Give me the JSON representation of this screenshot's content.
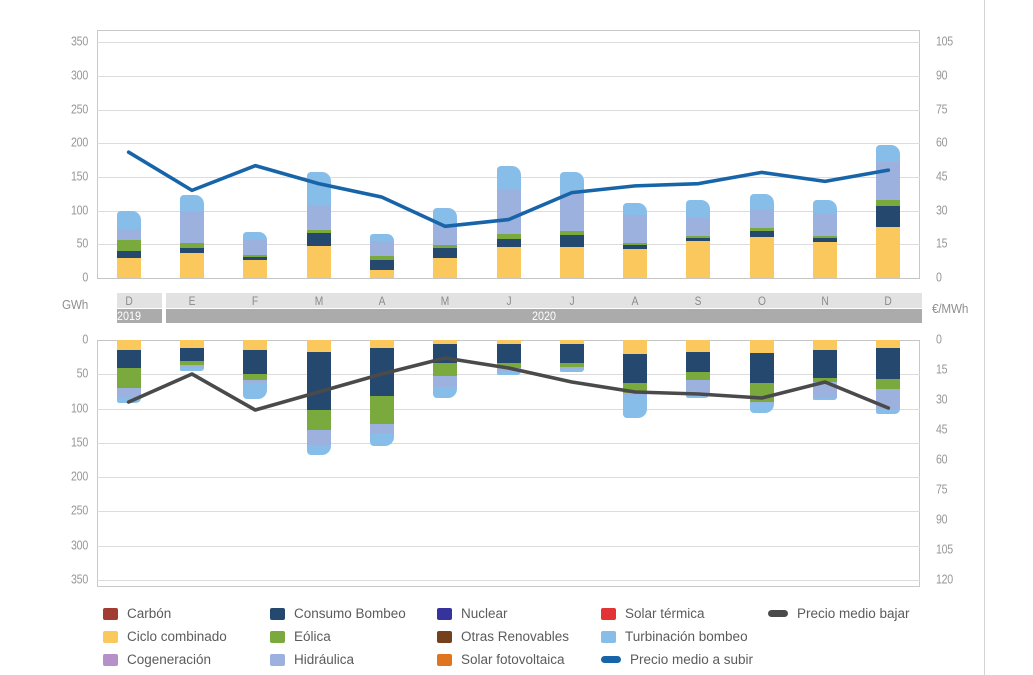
{
  "units": {
    "left": "GWh",
    "right": "€/MWh"
  },
  "months": [
    "D",
    "E",
    "F",
    "M",
    "A",
    "M",
    "J",
    "J",
    "A",
    "S",
    "O",
    "N",
    "D"
  ],
  "year_groups": [
    {
      "label": "2019",
      "months": 1
    },
    {
      "label": "2020",
      "months": 12
    }
  ],
  "colors": {
    "carbon": "#A23B31",
    "ciclo_combinado": "#FAC85C",
    "cogeneracion": "#B691C9",
    "consumo_bombeo": "#25486F",
    "eolica": "#7AA93E",
    "hidraulica": "#9DB1DE",
    "nuclear": "#37339C",
    "otras_renovables": "#74411C",
    "solar_fotovoltaica": "#E0751F",
    "solar_termica": "#E23337",
    "turbinacion_bombeo": "#87BEE9",
    "precio_subir": "#1765A8",
    "precio_bajar": "#4A4A4A",
    "gridline": "#dcdcdc",
    "band_light": "#e2e2e2",
    "band_dark": "#ababab"
  },
  "chart_data": [
    {
      "panel": "up",
      "type": "bar",
      "direction": "up",
      "categories": [
        "D",
        "E",
        "F",
        "M",
        "A",
        "M",
        "J",
        "J",
        "A",
        "S",
        "O",
        "N",
        "D"
      ],
      "axis_left": {
        "label": "GWh",
        "min": 0,
        "max": 350,
        "step": 50
      },
      "axis_right": {
        "label": "€/MWh",
        "min": 0,
        "max": 105,
        "step": 15
      },
      "grid": true,
      "series": [
        {
          "name": "Ciclo combinado",
          "key": "ciclo_combinado",
          "values": [
            30,
            37,
            27,
            47,
            12,
            29,
            46,
            46,
            43,
            55,
            61,
            54,
            75
          ]
        },
        {
          "name": "Consumo Bombeo",
          "key": "consumo_bombeo",
          "values": [
            10,
            8,
            4,
            20,
            15,
            15,
            12,
            18,
            6,
            4,
            8,
            6,
            32
          ]
        },
        {
          "name": "Eólica",
          "key": "eolica",
          "values": [
            17,
            7,
            3,
            4,
            6,
            5,
            7,
            6,
            3,
            4,
            5,
            2,
            9
          ]
        },
        {
          "name": "Hidráulica",
          "key": "hidraulica",
          "values": [
            16,
            46,
            23,
            37,
            22,
            33,
            67,
            55,
            42,
            27,
            28,
            33,
            56
          ]
        },
        {
          "name": "Turbinación bombeo",
          "key": "turbinacion_bombeo",
          "values": [
            27,
            25,
            11,
            50,
            10,
            22,
            34,
            32,
            18,
            26,
            23,
            20,
            25
          ]
        }
      ],
      "line": {
        "name": "Precio medio a subir",
        "key": "precio_subir",
        "axis": "right",
        "values": [
          56,
          39,
          50,
          42,
          36,
          23,
          26,
          38,
          41,
          42,
          47,
          43,
          48
        ]
      }
    },
    {
      "panel": "down",
      "type": "bar",
      "direction": "down",
      "categories": [
        "D",
        "E",
        "F",
        "M",
        "A",
        "M",
        "J",
        "J",
        "A",
        "S",
        "O",
        "N",
        "D"
      ],
      "axis_left": {
        "label": "GWh",
        "min": 0,
        "max": 350,
        "step": 50
      },
      "axis_right": {
        "label": "€/MWh",
        "min": 0,
        "max": 120,
        "step": 15
      },
      "grid": true,
      "series": [
        {
          "name": "Ciclo combinado",
          "key": "ciclo_combinado",
          "values": [
            15,
            12,
            15,
            18,
            12,
            6,
            6,
            6,
            20,
            18,
            19,
            14,
            12
          ]
        },
        {
          "name": "Consumo Bombeo",
          "key": "consumo_bombeo",
          "values": [
            26,
            19,
            35,
            84,
            70,
            28,
            28,
            28,
            43,
            29,
            44,
            42,
            45
          ]
        },
        {
          "name": "Eólica",
          "key": "eolica",
          "values": [
            29,
            6,
            8,
            29,
            41,
            19,
            7,
            6,
            15,
            12,
            27,
            5,
            15
          ]
        },
        {
          "name": "Hidráulica",
          "key": "hidraulica",
          "values": [
            15,
            4,
            5,
            22,
            12,
            16,
            4,
            2,
            2,
            18,
            2,
            22,
            28
          ]
        },
        {
          "name": "Turbinación bombeo",
          "key": "turbinacion_bombeo",
          "values": [
            7,
            4,
            23,
            14,
            19,
            16,
            6,
            4,
            34,
            8,
            15,
            4,
            8
          ]
        }
      ],
      "line": {
        "name": "Precio medio bajar",
        "key": "precio_bajar",
        "axis": "right",
        "values": [
          31,
          17,
          35,
          26,
          17,
          9,
          14,
          21,
          26,
          27,
          29,
          21,
          34
        ]
      }
    }
  ],
  "legend": {
    "columns": [
      [
        {
          "label": "Carbón",
          "color_key": "carbon",
          "marker": "square"
        },
        {
          "label": "Ciclo combinado",
          "color_key": "ciclo_combinado",
          "marker": "square"
        },
        {
          "label": "Cogeneración",
          "color_key": "cogeneracion",
          "marker": "square"
        }
      ],
      [
        {
          "label": "Consumo Bombeo",
          "color_key": "consumo_bombeo",
          "marker": "square"
        },
        {
          "label": "Eólica",
          "color_key": "eolica",
          "marker": "square"
        },
        {
          "label": "Hidráulica",
          "color_key": "hidraulica",
          "marker": "square"
        }
      ],
      [
        {
          "label": "Nuclear",
          "color_key": "nuclear",
          "marker": "square"
        },
        {
          "label": "Otras Renovables",
          "color_key": "otras_renovables",
          "marker": "square"
        },
        {
          "label": "Solar fotovoltaica",
          "color_key": "solar_fotovoltaica",
          "marker": "square"
        }
      ],
      [
        {
          "label": "Solar térmica",
          "color_key": "solar_termica",
          "marker": "square"
        },
        {
          "label": "Turbinación bombeo",
          "color_key": "turbinacion_bombeo",
          "marker": "square"
        },
        {
          "label": "Precio medio a subir",
          "color_key": "precio_subir",
          "marker": "line"
        }
      ],
      [
        {
          "label": "Precio medio bajar",
          "color_key": "precio_bajar",
          "marker": "line"
        }
      ]
    ]
  }
}
